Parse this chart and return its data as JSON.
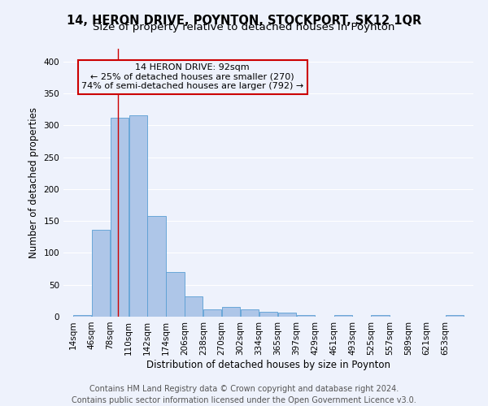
{
  "title": "14, HERON DRIVE, POYNTON, STOCKPORT, SK12 1QR",
  "subtitle": "Size of property relative to detached houses in Poynton",
  "xlabel": "Distribution of detached houses by size in Poynton",
  "ylabel": "Number of detached properties",
  "footer_line1": "Contains HM Land Registry data © Crown copyright and database right 2024.",
  "footer_line2": "Contains public sector information licensed under the Open Government Licence v3.0.",
  "bin_labels": [
    "14sqm",
    "46sqm",
    "78sqm",
    "110sqm",
    "142sqm",
    "174sqm",
    "206sqm",
    "238sqm",
    "270sqm",
    "302sqm",
    "334sqm",
    "365sqm",
    "397sqm",
    "429sqm",
    "461sqm",
    "493sqm",
    "525sqm",
    "557sqm",
    "589sqm",
    "621sqm",
    "653sqm"
  ],
  "bin_values": [
    3,
    136,
    312,
    315,
    158,
    70,
    32,
    12,
    15,
    11,
    8,
    7,
    3,
    0,
    2,
    0,
    2,
    0,
    0,
    0,
    2
  ],
  "bar_color": "#aec6e8",
  "bar_edge_color": "#5a9fd4",
  "background_color": "#eef2fc",
  "grid_color": "#ffffff",
  "annotation_line1": "14 HERON DRIVE: 92sqm",
  "annotation_line2": "← 25% of detached houses are smaller (270)",
  "annotation_line3": "74% of semi-detached houses are larger (792) →",
  "annotation_box_color": "#cc0000",
  "red_line_x": 92,
  "ylim": [
    0,
    420
  ],
  "yticks": [
    0,
    50,
    100,
    150,
    200,
    250,
    300,
    350,
    400
  ],
  "title_fontsize": 10.5,
  "subtitle_fontsize": 9.5,
  "axis_label_fontsize": 8.5,
  "tick_fontsize": 7.5,
  "annotation_fontsize": 8,
  "footer_fontsize": 7
}
